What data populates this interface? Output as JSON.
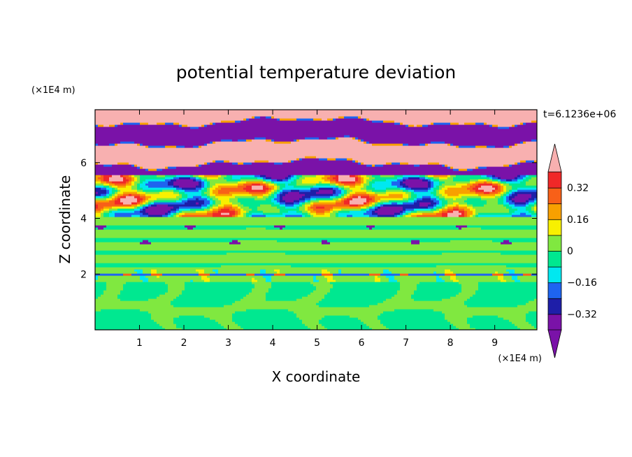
{
  "chart_data": {
    "type": "heatmap",
    "title": "potential temperature deviation",
    "xlabel": "X coordinate",
    "ylabel": "Z coordinate",
    "x_unit": "(×1E4 m)",
    "y_unit": "(×1E4 m)",
    "time_label": "t=6.1236e+06",
    "xlim": [
      0,
      9.95
    ],
    "ylim": [
      0,
      7.9
    ],
    "x_ticks": [
      1,
      2,
      3,
      4,
      5,
      6,
      7,
      8,
      9
    ],
    "y_ticks": [
      2,
      4,
      6
    ],
    "x_tick_labels": [
      "1",
      "2",
      "3",
      "4",
      "5",
      "6",
      "7",
      "8",
      "9"
    ],
    "y_tick_labels": [
      "2",
      "4",
      "6"
    ],
    "colorbar": {
      "levels": [
        -0.4,
        -0.32,
        -0.24,
        -0.16,
        -0.08,
        0,
        0.08,
        0.16,
        0.24,
        0.32,
        0.4
      ],
      "colors": [
        "#7a12a8",
        "#1e1ea8",
        "#1e64f0",
        "#00e8f0",
        "#00e890",
        "#80e840",
        "#f8f000",
        "#f8a000",
        "#f86018",
        "#f02828",
        "#f8b0b0"
      ],
      "extend": "both",
      "tick_values": [
        0.32,
        0.16,
        0,
        -0.16,
        -0.32
      ],
      "tick_labels": [
        "0.32",
        "0.16",
        "0",
        "−0.16",
        "−0.32"
      ]
    },
    "bands": [
      {
        "z_from": 0.0,
        "z_to": 1.7,
        "pattern": "convective-cells",
        "dominant": [
          0.0,
          -0.06
        ]
      },
      {
        "z_from": 1.7,
        "z_to": 2.2,
        "pattern": "thin-interface",
        "dominant": [
          0.02,
          -0.05
        ]
      },
      {
        "z_from": 2.2,
        "z_to": 4.1,
        "pattern": "stratified",
        "dominant": [
          0.04,
          -0.04
        ]
      },
      {
        "z_from": 4.1,
        "z_to": 5.6,
        "pattern": "mixed-turbulent",
        "dominant": [
          0.35,
          -0.35,
          0.0,
          0.2
        ]
      },
      {
        "z_from": 5.6,
        "z_to": 7.9,
        "pattern": "alternating-layers",
        "dominant": [
          0.45,
          -0.45
        ]
      }
    ]
  }
}
